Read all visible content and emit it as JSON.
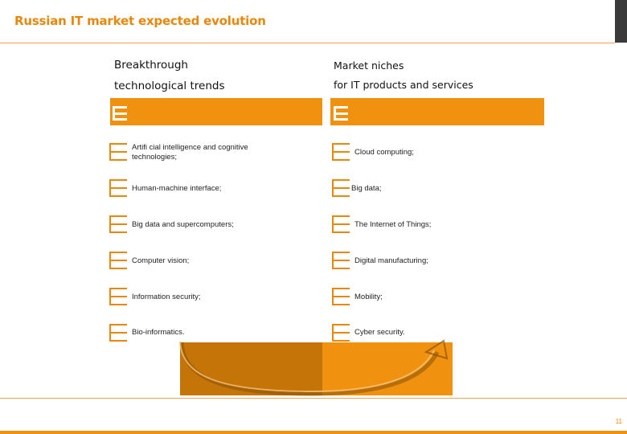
{
  "slide": {
    "title": "Russian IT market expected evolution",
    "page_number": "11"
  },
  "left_column": {
    "heading_line1": "Breakthrough",
    "heading_line2": "technological trends",
    "items": [
      "Artifi cial intelligence and cognitive technologies;",
      "Human-machine interface;",
      "Big data and supercomputers;",
      "Computer vision;",
      "Information security;",
      "Bio-informatics."
    ]
  },
  "right_column": {
    "heading_line1": "Market niches",
    "heading_line2": "for IT products and services",
    "items": [
      "Cloud computing;",
      "Big data;",
      "The Internet of Things;",
      "Digital manufacturing;",
      "Mobility;",
      "Cyber security."
    ]
  },
  "colors": {
    "accent": "#F0920F",
    "accent_dark": "#C57408",
    "title": "#E8870A"
  }
}
